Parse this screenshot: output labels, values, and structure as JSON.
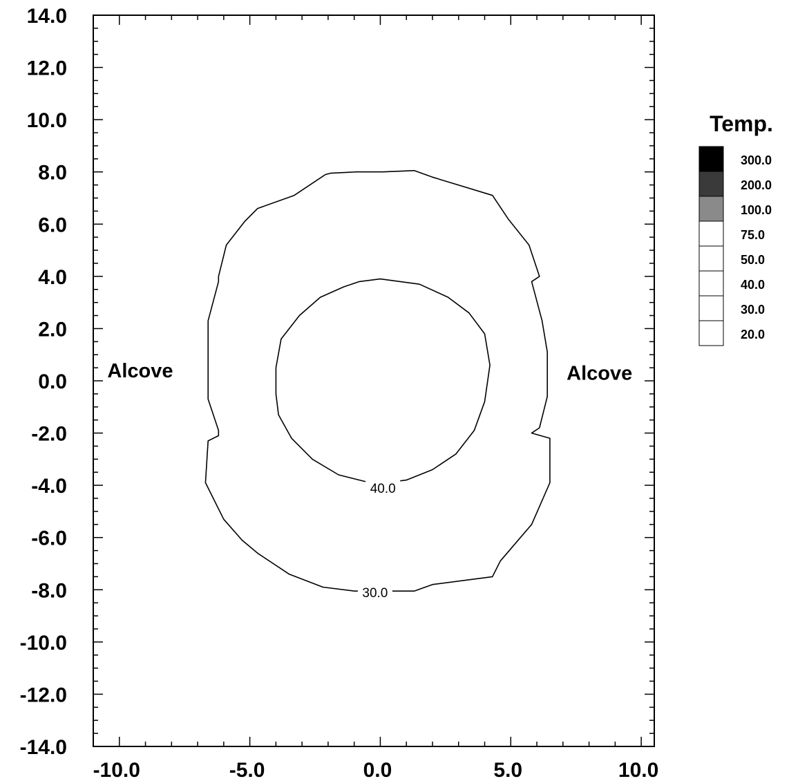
{
  "chart_data": {
    "type": "contour",
    "title": "",
    "xlabel": "",
    "ylabel": "",
    "xlim": [
      -11.0,
      10.5
    ],
    "ylim": [
      -14.0,
      14.0
    ],
    "x_ticks": [
      -10.0,
      -5.0,
      0.0,
      5.0,
      10.0
    ],
    "x_tick_labels": [
      "-10.0",
      "-5.0",
      "0.0",
      "5.0",
      "10.0"
    ],
    "y_ticks": [
      14.0,
      12.0,
      10.0,
      8.0,
      6.0,
      4.0,
      2.0,
      0.0,
      -2.0,
      -4.0,
      -6.0,
      -8.0,
      -10.0,
      -12.0,
      -14.0
    ],
    "y_tick_labels": [
      "14.0",
      "12.0",
      "10.0",
      "8.0",
      "6.0",
      "4.0",
      "2.0",
      "0.0",
      "-2.0",
      "-4.0",
      "-6.0",
      "-8.0",
      "-10.0",
      "-12.0",
      "-14.0"
    ],
    "grid": false,
    "annotations": [
      {
        "text": "Alcove",
        "x": -9.2,
        "y": 0.4
      },
      {
        "text": "Alcove",
        "x": 8.4,
        "y": 0.3
      }
    ],
    "contours": [
      {
        "level": "30.0",
        "label": "30.0",
        "label_at": [
          -0.2,
          -8.1
        ],
        "points": [
          [
            1.3,
            8.05
          ],
          [
            2.0,
            7.8
          ],
          [
            4.3,
            7.1
          ],
          [
            4.9,
            6.2
          ],
          [
            5.7,
            5.2
          ],
          [
            6.1,
            4.0
          ],
          [
            5.8,
            3.8
          ],
          [
            6.2,
            2.3
          ],
          [
            6.4,
            1.1
          ],
          [
            6.4,
            -0.6
          ],
          [
            6.1,
            -1.8
          ],
          [
            5.8,
            -2.0
          ],
          [
            6.5,
            -2.2
          ],
          [
            6.5,
            -3.9
          ],
          [
            5.8,
            -5.5
          ],
          [
            4.6,
            -6.9
          ],
          [
            4.3,
            -7.5
          ],
          [
            2.0,
            -7.8
          ],
          [
            1.3,
            -8.05
          ],
          [
            0.4,
            -8.05
          ],
          [
            -1.0,
            -8.05
          ],
          [
            -2.2,
            -7.9
          ],
          [
            -3.5,
            -7.4
          ],
          [
            -4.7,
            -6.6
          ],
          [
            -5.3,
            -6.1
          ],
          [
            -6.0,
            -5.3
          ],
          [
            -6.7,
            -3.9
          ],
          [
            -6.6,
            -2.3
          ],
          [
            -6.2,
            -2.1
          ],
          [
            -6.2,
            -1.9
          ],
          [
            -6.6,
            -0.7
          ],
          [
            -6.6,
            2.3
          ],
          [
            -6.2,
            3.8
          ],
          [
            -6.2,
            4.0
          ],
          [
            -5.9,
            5.2
          ],
          [
            -5.2,
            6.1
          ],
          [
            -4.7,
            6.6
          ],
          [
            -3.3,
            7.1
          ],
          [
            -2.1,
            7.9
          ],
          [
            -1.9,
            7.95
          ],
          [
            -0.9,
            8.0
          ],
          [
            0.1,
            8.0
          ]
        ]
      },
      {
        "level": "40.0",
        "label": "40.0",
        "label_at": [
          0.1,
          -4.1
        ],
        "points": [
          [
            0.0,
            3.9
          ],
          [
            1.5,
            3.7
          ],
          [
            2.6,
            3.2
          ],
          [
            3.4,
            2.6
          ],
          [
            4.0,
            1.8
          ],
          [
            4.2,
            0.6
          ],
          [
            4.0,
            -0.8
          ],
          [
            3.6,
            -1.9
          ],
          [
            2.9,
            -2.8
          ],
          [
            2.0,
            -3.4
          ],
          [
            1.0,
            -3.8
          ],
          [
            0.2,
            -3.9
          ],
          [
            -0.6,
            -3.85
          ],
          [
            -1.6,
            -3.6
          ],
          [
            -2.6,
            -3.0
          ],
          [
            -3.4,
            -2.2
          ],
          [
            -3.9,
            -1.3
          ],
          [
            -4.0,
            -0.5
          ],
          [
            -4.0,
            0.5
          ],
          [
            -3.8,
            1.6
          ],
          [
            -3.1,
            2.5
          ],
          [
            -2.3,
            3.2
          ],
          [
            -1.4,
            3.6
          ],
          [
            -0.8,
            3.8
          ]
        ]
      }
    ],
    "legend": {
      "title": "Temp.",
      "placement": "right",
      "levels": [
        {
          "value": 300.0,
          "label": "300.0",
          "color": "#000000"
        },
        {
          "value": 200.0,
          "label": "200.0",
          "color": "#3a3a3a"
        },
        {
          "value": 100.0,
          "label": "100.0",
          "color": "#8a8a8a"
        },
        {
          "value": 75.0,
          "label": "75.0",
          "color": "#ffffff"
        },
        {
          "value": 50.0,
          "label": "50.0",
          "color": "#ffffff"
        },
        {
          "value": 40.0,
          "label": "40.0",
          "color": "#ffffff"
        },
        {
          "value": 30.0,
          "label": "30.0",
          "color": "#ffffff"
        },
        {
          "value": 20.0,
          "label": "20.0",
          "color": "#ffffff"
        }
      ]
    }
  }
}
